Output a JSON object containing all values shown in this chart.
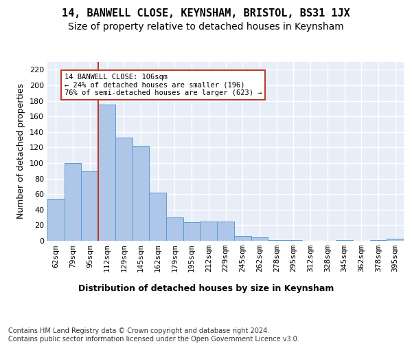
{
  "title": "14, BANWELL CLOSE, KEYNSHAM, BRISTOL, BS31 1JX",
  "subtitle": "Size of property relative to detached houses in Keynsham",
  "xlabel": "Distribution of detached houses by size in Keynsham",
  "ylabel": "Number of detached properties",
  "categories": [
    "62sqm",
    "79sqm",
    "95sqm",
    "112sqm",
    "129sqm",
    "145sqm",
    "162sqm",
    "179sqm",
    "195sqm",
    "212sqm",
    "229sqm",
    "245sqm",
    "262sqm",
    "278sqm",
    "295sqm",
    "312sqm",
    "328sqm",
    "345sqm",
    "362sqm",
    "378sqm",
    "395sqm"
  ],
  "values": [
    54,
    100,
    89,
    175,
    133,
    122,
    62,
    30,
    24,
    25,
    25,
    6,
    4,
    1,
    1,
    0,
    0,
    1,
    0,
    1,
    3
  ],
  "bar_color": "#aec6e8",
  "bar_edge_color": "#5b9bd5",
  "bg_color": "#e8eef7",
  "grid_color": "#ffffff",
  "vline_x": 2.5,
  "vline_color": "#c0392b",
  "annotation_text": "14 BANWELL CLOSE: 106sqm\n← 24% of detached houses are smaller (196)\n76% of semi-detached houses are larger (623) →",
  "annotation_box_color": "#ffffff",
  "annotation_box_edge": "#c0392b",
  "ylim": [
    0,
    230
  ],
  "yticks": [
    0,
    20,
    40,
    60,
    80,
    100,
    120,
    140,
    160,
    180,
    200,
    220
  ],
  "footer": "Contains HM Land Registry data © Crown copyright and database right 2024.\nContains public sector information licensed under the Open Government Licence v3.0.",
  "title_fontsize": 11,
  "subtitle_fontsize": 10,
  "xlabel_fontsize": 9,
  "ylabel_fontsize": 9,
  "tick_fontsize": 8,
  "footer_fontsize": 7,
  "fig_bg": "#ffffff"
}
